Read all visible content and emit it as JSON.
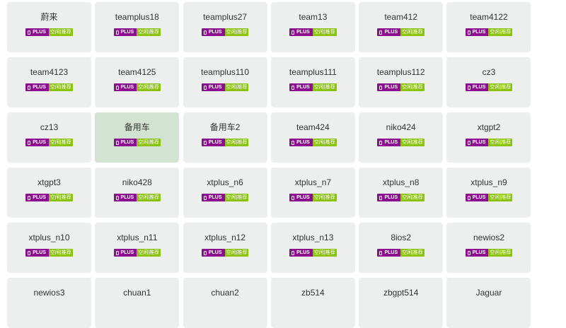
{
  "colors": {
    "card_bg": "#edeeee",
    "selected_bg": "#d3e3d3",
    "plus_badge": "#8b0f8e",
    "status_badge": "#8bc10f"
  },
  "badge": {
    "plus_label": "PLUS",
    "status_label": "空闲|推荐",
    "icon": "bulb-icon"
  },
  "cards": [
    {
      "name": "蔚来",
      "badge": true
    },
    {
      "name": "teamplus18",
      "badge": true
    },
    {
      "name": "teamplus27",
      "badge": true
    },
    {
      "name": "team13",
      "badge": true
    },
    {
      "name": "team412",
      "badge": true
    },
    {
      "name": "team4122",
      "badge": true
    },
    {
      "name": "team4123",
      "badge": true
    },
    {
      "name": "team4125",
      "badge": true
    },
    {
      "name": "teamplus110",
      "badge": true
    },
    {
      "name": "teamplus111",
      "badge": true
    },
    {
      "name": "teamplus112",
      "badge": true
    },
    {
      "name": "cz3",
      "badge": true
    },
    {
      "name": "cz13",
      "badge": true
    },
    {
      "name": "备用车",
      "badge": true,
      "selected": true
    },
    {
      "name": "备用车2",
      "badge": true
    },
    {
      "name": "team424",
      "badge": true
    },
    {
      "name": "niko424",
      "badge": true
    },
    {
      "name": "xtgpt2",
      "badge": true
    },
    {
      "name": "xtgpt3",
      "badge": true
    },
    {
      "name": "niko428",
      "badge": true
    },
    {
      "name": "xtplus_n6",
      "badge": true
    },
    {
      "name": "xtplus_n7",
      "badge": true
    },
    {
      "name": "xtplus_n8",
      "badge": true
    },
    {
      "name": "xtplus_n9",
      "badge": true
    },
    {
      "name": "xtplus_n10",
      "badge": true
    },
    {
      "name": "xtplus_n11",
      "badge": true
    },
    {
      "name": "xtplus_n12",
      "badge": true
    },
    {
      "name": "xtplus_n13",
      "badge": true
    },
    {
      "name": "8ios2",
      "badge": true
    },
    {
      "name": "newios2",
      "badge": true
    },
    {
      "name": "newios3",
      "badge": false
    },
    {
      "name": "chuan1",
      "badge": false
    },
    {
      "name": "chuan2",
      "badge": false
    },
    {
      "name": "zb514",
      "badge": false
    },
    {
      "name": "zbgpt514",
      "badge": false
    },
    {
      "name": "Jaguar",
      "badge": false
    }
  ]
}
